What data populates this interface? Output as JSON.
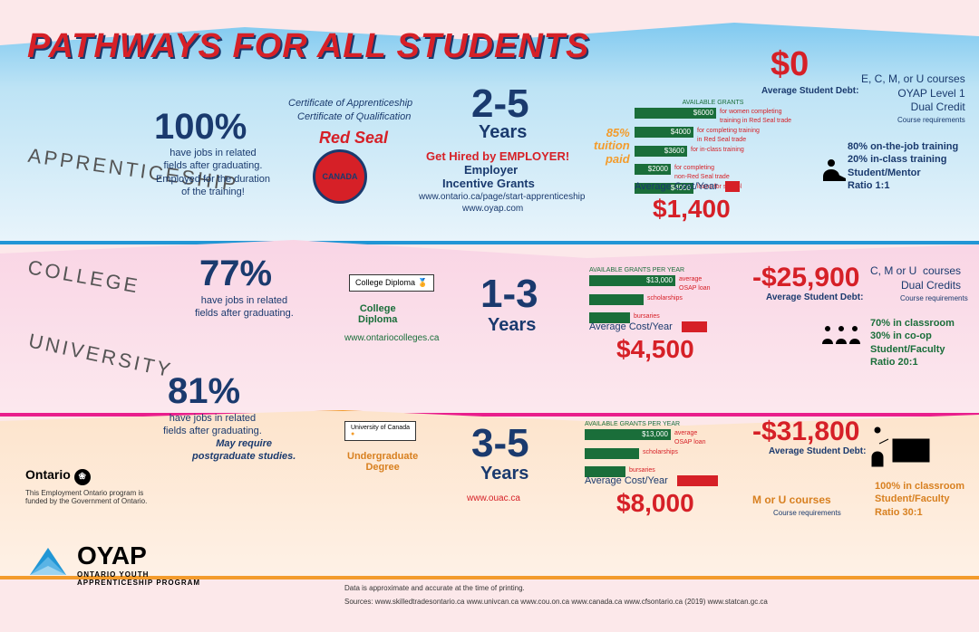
{
  "title": "PATHWAYS FOR ALL STUDENTS",
  "labels": {
    "apprenticeship": "APPRENTICESHIP",
    "college": "COLLEGE",
    "university": "UNIVERSITY"
  },
  "apprenticeship": {
    "pct": "100%",
    "pct_desc": "have jobs in related\nfields after graduating.\nEmployed for the duration\nof the training!",
    "cert1": "Certificate of Apprenticeship",
    "cert2": "Certificate of Qualification",
    "red_seal": "Red Seal",
    "seal_text": "CANADA",
    "years": "2-5",
    "years_lbl": "Years",
    "hired": "Get Hired by EMPLOYER!",
    "hired_sub1": "Employer",
    "hired_sub2": "Incentive Grants",
    "link1": "www.ontario.ca/page/start-apprenticeship",
    "link2": "www.oyap.com",
    "grants_title": "AVAILABLE GRANTS",
    "grants": [
      {
        "val": "$6000",
        "w": 90,
        "desc": "for women completing\ntraining in Red Seal trade"
      },
      {
        "val": "$4000",
        "w": 65,
        "desc": "for completing training\nin Red Seal trade"
      },
      {
        "val": "$3600",
        "w": 58,
        "desc": "for in-class training"
      },
      {
        "val": "$2000",
        "w": 40,
        "desc": "for completing\nnon-Red Seal trade"
      },
      {
        "val": "$4000",
        "w": 65,
        "desc": "loans for school"
      }
    ],
    "tuition1": "85%",
    "tuition2": "tuition",
    "tuition3": "paid",
    "cost_lbl": "Average Cost/Year",
    "cost": "$1,400",
    "debt": "$0",
    "debt_lbl": "Average Student Debt:",
    "courses": "E, C, M, or U courses\nOYAP Level 1\nDual Credit",
    "courses_sm": "Course requirements",
    "training1": "80% on-the-job training",
    "training2": "20% in-class training",
    "training3": "Student/Mentor",
    "training4": "Ratio 1:1"
  },
  "college": {
    "pct": "77%",
    "pct_desc": "have jobs in related\nfields after graduating.",
    "diploma_box": "College Diploma",
    "diploma_lbl": "College\nDiploma",
    "link": "www.ontariocolleges.ca",
    "years": "1-3",
    "years_lbl": "Years",
    "grants_title": "AVAILABLE GRANTS PER YEAR",
    "grants": [
      {
        "val": "$13,000",
        "w": 95,
        "desc": "average\nOSAP loan"
      },
      {
        "val": "",
        "w": 60,
        "desc": "scholarships"
      },
      {
        "val": "",
        "w": 45,
        "desc": "bursaries"
      }
    ],
    "cost_lbl": "Average Cost/Year",
    "cost": "$4,500",
    "debt": "-$25,900",
    "debt_lbl": "Average Student Debt:",
    "courses": "C, M or U  courses\nDual Credits",
    "courses_sm": "Course requirements",
    "training1": "70% in classroom",
    "training2": "30% in co-op",
    "training3": "Student/Faculty",
    "training4": "Ratio 20:1"
  },
  "university": {
    "pct": "81%",
    "pct_desc": "have jobs in related\nfields after graduating.",
    "pct_desc2": "May require\npostgraduate studies.",
    "degree_box": "University of Canada",
    "degree_lbl": "Undergraduate\nDegree",
    "link": "www.ouac.ca",
    "years": "3-5",
    "years_lbl": "Years",
    "grants_title": "AVAILABLE GRANTS PER YEAR",
    "grants": [
      {
        "val": "$13,000",
        "w": 95,
        "desc": "average\nOSAP loan"
      },
      {
        "val": "",
        "w": 60,
        "desc": "scholarships"
      },
      {
        "val": "",
        "w": 45,
        "desc": "bursaries"
      }
    ],
    "cost_lbl": "Average Cost/Year",
    "cost": "$8,000",
    "debt": "-$31,800",
    "debt_lbl": "Average Student Debt:",
    "courses": "M or U courses",
    "courses_sm": "Course requirements",
    "training1": "100% in classroom",
    "training3": "Student/Faculty",
    "training4": "Ratio 30:1"
  },
  "footer": {
    "ontario": "Ontario",
    "ontario_desc": "This Employment Ontario program is\nfunded by the Government of Ontario.",
    "oyap": "OYAP",
    "oyap_sub": "ONTARIO YOUTH\nAPPRENTICESHIP PROGRAM",
    "data_note": "Data is approximate and accurate at the time of printing.",
    "sources": "Sources:  www.skilledtradesontario.ca  www.univcan.ca  www.cou.on.ca  www.canada.ca  www.cfsontario.ca (2019)  www.statcan.gc.ca"
  },
  "colors": {
    "blue": "#2196d5",
    "pink": "#e91e8c",
    "orange": "#f39c2c",
    "red": "#d62027",
    "navy": "#1a3a6e",
    "green": "#1a6e3a"
  }
}
